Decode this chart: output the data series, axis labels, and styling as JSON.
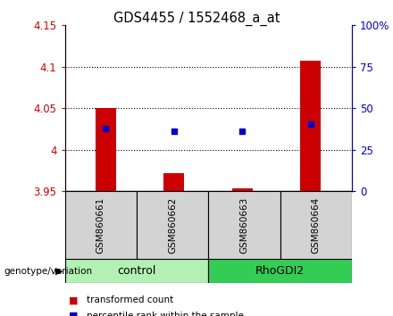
{
  "title": "GDS4455 / 1552468_a_at",
  "samples": [
    "GSM860661",
    "GSM860662",
    "GSM860663",
    "GSM860664"
  ],
  "group_colors": [
    "#b3f0b3",
    "#33cc55"
  ],
  "ylim_left": [
    3.95,
    4.15
  ],
  "yticks_left": [
    3.95,
    4.0,
    4.05,
    4.1,
    4.15
  ],
  "ytick_labels_left": [
    "3.95",
    "4",
    "4.05",
    "4.1",
    "4.15"
  ],
  "ylim_right": [
    0,
    100
  ],
  "yticks_right": [
    0,
    25,
    50,
    75,
    100
  ],
  "ytick_labels_right": [
    "0",
    "25",
    "50",
    "75",
    "100%"
  ],
  "bar_bottoms": [
    3.95,
    3.95,
    3.95,
    3.95
  ],
  "bar_tops": [
    4.05,
    3.972,
    3.953,
    4.107
  ],
  "blue_marker_values": [
    4.025,
    4.022,
    4.022,
    4.031
  ],
  "bar_color": "#CC0000",
  "blue_color": "#0000CC",
  "left_axis_color": "#CC0000",
  "right_axis_color": "#0000CC",
  "legend_red_label": "transformed count",
  "legend_blue_label": "percentile rank within the sample",
  "genotype_label": "genotype/variation"
}
